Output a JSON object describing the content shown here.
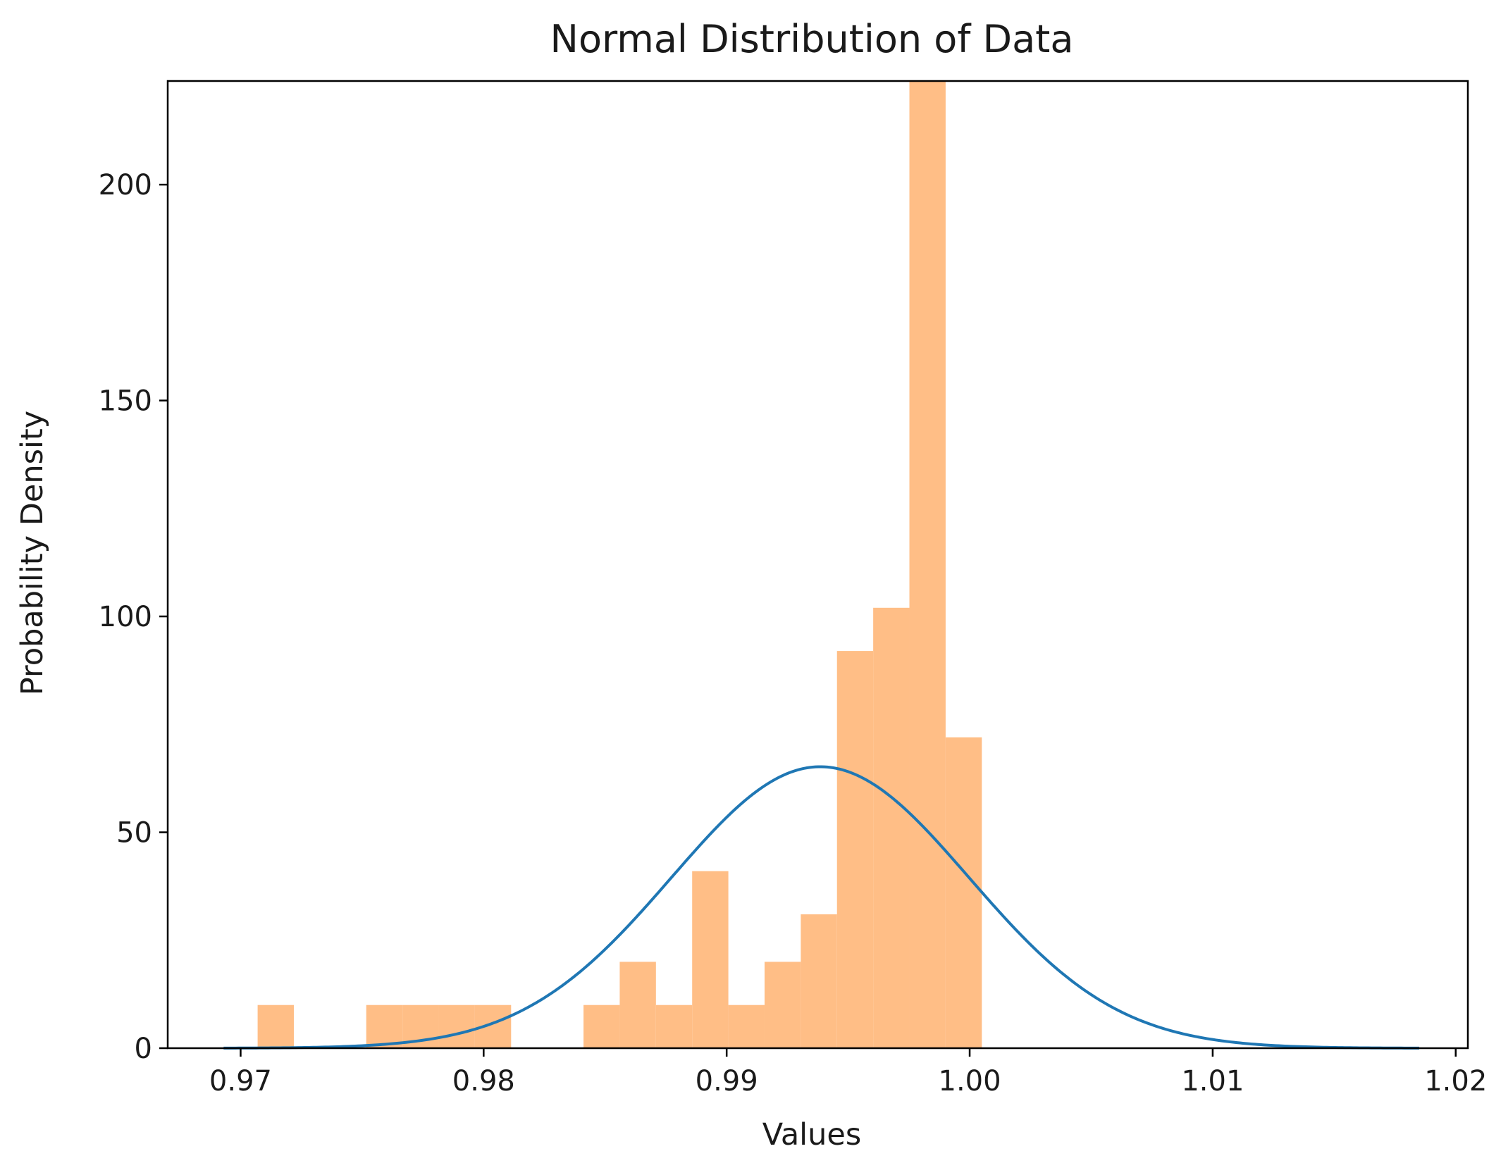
{
  "chart_data": {
    "type": "bar",
    "title": "Normal Distribution of Data",
    "xlabel": "Values",
    "ylabel": "Probability Density",
    "xlim": [
      0.967,
      1.0205
    ],
    "ylim": [
      0,
      224
    ],
    "xticks": [
      "0.97",
      "0.98",
      "0.99",
      "1.00",
      "1.01",
      "1.02"
    ],
    "yticks": [
      "0",
      "50",
      "100",
      "150",
      "200"
    ],
    "grid": false,
    "colors": {
      "histogram": "#ffbe86",
      "curve": "#1f77b4",
      "axes": "#000000"
    },
    "histogram": {
      "name": "",
      "bin_edges": [
        0.9707,
        0.97219,
        0.97368,
        0.97517,
        0.97666,
        0.97815,
        0.97964,
        0.98113,
        0.98262,
        0.98411,
        0.9856,
        0.98709,
        0.98858,
        0.99007,
        0.99156,
        0.99305,
        0.99454,
        0.99603,
        0.99752,
        0.99901
      ],
      "values": [
        10,
        0,
        0,
        10,
        10,
        10,
        10,
        0,
        0,
        10,
        20,
        10,
        41,
        10,
        20,
        31,
        92,
        102,
        224
      ]
    },
    "extra_bar": {
      "x0": 0.99901,
      "x1": 1.0005,
      "value": 72
    },
    "fit_curve": {
      "name": "",
      "mean": 0.99385,
      "std": 0.00612,
      "x_range": [
        0.9693,
        1.0185
      ]
    }
  }
}
